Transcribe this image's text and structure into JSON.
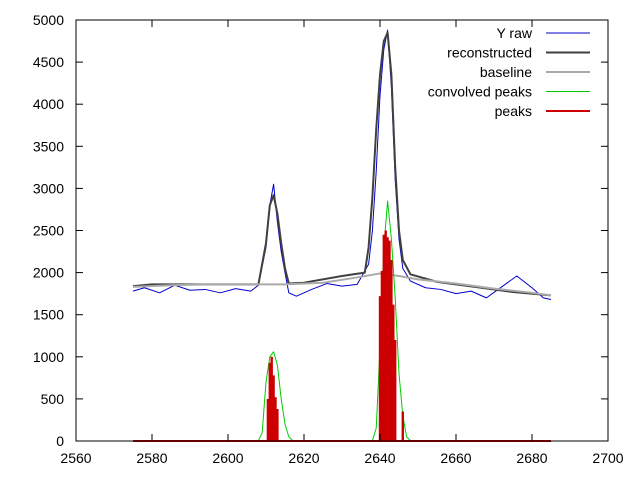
{
  "chart_data": {
    "type": "line",
    "xlim": [
      2560,
      2700
    ],
    "ylim": [
      0,
      5000
    ],
    "x_ticks": [
      2560,
      2580,
      2600,
      2620,
      2640,
      2660,
      2680,
      2700
    ],
    "y_ticks": [
      0,
      500,
      1000,
      1500,
      2000,
      2500,
      3000,
      3500,
      4000,
      4500,
      5000
    ],
    "grid": false,
    "legend_position": "top-right",
    "series": [
      {
        "name": "Y raw",
        "color": "#0000cc",
        "points": [
          [
            2575,
            1780
          ],
          [
            2578,
            1820
          ],
          [
            2582,
            1760
          ],
          [
            2586,
            1850
          ],
          [
            2590,
            1790
          ],
          [
            2594,
            1800
          ],
          [
            2598,
            1760
          ],
          [
            2602,
            1810
          ],
          [
            2606,
            1780
          ],
          [
            2608,
            1850
          ],
          [
            2610,
            2300
          ],
          [
            2611,
            2800
          ],
          [
            2612,
            3050
          ],
          [
            2613,
            2600
          ],
          [
            2614,
            2250
          ],
          [
            2615,
            2000
          ],
          [
            2616,
            1760
          ],
          [
            2618,
            1720
          ],
          [
            2622,
            1800
          ],
          [
            2626,
            1870
          ],
          [
            2630,
            1840
          ],
          [
            2634,
            1860
          ],
          [
            2637,
            2100
          ],
          [
            2638,
            2500
          ],
          [
            2639,
            3200
          ],
          [
            2640,
            4100
          ],
          [
            2641,
            4650
          ],
          [
            2642,
            4880
          ],
          [
            2643,
            4200
          ],
          [
            2644,
            3100
          ],
          [
            2645,
            2400
          ],
          [
            2646,
            2050
          ],
          [
            2648,
            1900
          ],
          [
            2652,
            1820
          ],
          [
            2656,
            1800
          ],
          [
            2660,
            1750
          ],
          [
            2664,
            1780
          ],
          [
            2668,
            1700
          ],
          [
            2672,
            1830
          ],
          [
            2676,
            1960
          ],
          [
            2680,
            1820
          ],
          [
            2683,
            1700
          ],
          [
            2685,
            1680
          ]
        ]
      },
      {
        "name": "reconstructed",
        "color": "#404040",
        "points": [
          [
            2575,
            1840
          ],
          [
            2580,
            1860
          ],
          [
            2590,
            1860
          ],
          [
            2600,
            1860
          ],
          [
            2608,
            1860
          ],
          [
            2610,
            2350
          ],
          [
            2611,
            2800
          ],
          [
            2612,
            2920
          ],
          [
            2613,
            2700
          ],
          [
            2614,
            2350
          ],
          [
            2615,
            2050
          ],
          [
            2616,
            1870
          ],
          [
            2620,
            1880
          ],
          [
            2630,
            1960
          ],
          [
            2636,
            2000
          ],
          [
            2637,
            2300
          ],
          [
            2638,
            2900
          ],
          [
            2639,
            3700
          ],
          [
            2640,
            4350
          ],
          [
            2641,
            4750
          ],
          [
            2642,
            4850
          ],
          [
            2643,
            4350
          ],
          [
            2644,
            3250
          ],
          [
            2645,
            2500
          ],
          [
            2646,
            2150
          ],
          [
            2648,
            1980
          ],
          [
            2655,
            1890
          ],
          [
            2665,
            1830
          ],
          [
            2675,
            1770
          ],
          [
            2685,
            1730
          ]
        ]
      },
      {
        "name": "baseline",
        "color": "#aaaaaa",
        "points": [
          [
            2575,
            1830
          ],
          [
            2585,
            1850
          ],
          [
            2595,
            1860
          ],
          [
            2605,
            1860
          ],
          [
            2615,
            1860
          ],
          [
            2625,
            1880
          ],
          [
            2635,
            1950
          ],
          [
            2640,
            1990
          ],
          [
            2645,
            1960
          ],
          [
            2650,
            1920
          ],
          [
            2660,
            1870
          ],
          [
            2670,
            1810
          ],
          [
            2680,
            1760
          ],
          [
            2685,
            1730
          ]
        ]
      },
      {
        "name": "convolved peaks",
        "color": "#00cc00",
        "points": [
          [
            2575,
            5
          ],
          [
            2608,
            5
          ],
          [
            2609,
            100
          ],
          [
            2610,
            700
          ],
          [
            2611,
            1000
          ],
          [
            2612,
            1060
          ],
          [
            2613,
            900
          ],
          [
            2614,
            500
          ],
          [
            2615,
            200
          ],
          [
            2616,
            50
          ],
          [
            2617,
            5
          ],
          [
            2638,
            5
          ],
          [
            2639,
            150
          ],
          [
            2640,
            1100
          ],
          [
            2641,
            2300
          ],
          [
            2642,
            2850
          ],
          [
            2643,
            2400
          ],
          [
            2644,
            1700
          ],
          [
            2645,
            800
          ],
          [
            2646,
            300
          ],
          [
            2647,
            50
          ],
          [
            2648,
            5
          ],
          [
            2685,
            5
          ]
        ]
      },
      {
        "name": "peaks",
        "color": "#cc0000",
        "points": [
          [
            2610.5,
            500
          ],
          [
            2611,
            930
          ],
          [
            2611.5,
            1000
          ],
          [
            2612,
            780
          ],
          [
            2612.5,
            520
          ],
          [
            2613,
            380
          ],
          [
            2640,
            1720
          ],
          [
            2640.5,
            2020
          ],
          [
            2641,
            2450
          ],
          [
            2641.5,
            2500
          ],
          [
            2642,
            2420
          ],
          [
            2642.5,
            2380
          ],
          [
            2643,
            2150
          ],
          [
            2643.5,
            1620
          ],
          [
            2644,
            1200
          ],
          [
            2646,
            350
          ]
        ]
      }
    ]
  }
}
